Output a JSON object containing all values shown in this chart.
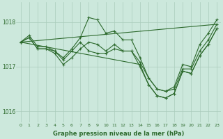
{
  "line1_x": [
    0,
    1,
    2,
    3,
    4,
    5,
    6,
    7,
    8,
    9,
    10,
    11,
    12,
    13,
    14,
    15,
    16,
    17,
    18,
    19,
    20,
    21,
    22,
    23
  ],
  "line1_y": [
    1017.55,
    1017.65,
    1017.4,
    1017.4,
    1017.35,
    1017.15,
    1017.35,
    1017.55,
    1017.35,
    1017.3,
    1017.3,
    1017.4,
    1017.35,
    1017.35,
    1017.1,
    1016.75,
    1016.5,
    1016.45,
    1016.5,
    1016.95,
    1016.95,
    1017.35,
    1017.6,
    1017.95
  ],
  "line2_x": [
    0,
    1,
    2,
    3,
    4,
    5,
    6,
    7,
    8,
    9,
    10,
    11,
    12,
    13,
    14,
    15,
    16,
    17,
    18,
    19,
    20,
    21,
    22,
    23
  ],
  "line2_y": [
    1017.55,
    1017.65,
    1017.4,
    1017.4,
    1017.3,
    1017.05,
    1017.2,
    1017.4,
    1017.55,
    1017.5,
    1017.35,
    1017.5,
    1017.35,
    1017.35,
    1017.0,
    1016.6,
    1016.35,
    1016.3,
    1016.4,
    1016.9,
    1016.85,
    1017.25,
    1017.5,
    1017.85
  ],
  "line3_x": [
    0,
    1,
    2,
    3,
    4,
    5,
    6,
    7,
    8,
    9,
    10,
    11,
    12,
    13,
    14,
    15,
    16,
    17,
    18,
    19,
    20,
    21,
    22,
    23
  ],
  "line3_y": [
    1017.55,
    1017.7,
    1017.45,
    1017.45,
    1017.35,
    1017.2,
    1017.4,
    1017.65,
    1018.1,
    1018.05,
    1017.75,
    1017.8,
    1017.6,
    1017.6,
    1017.2,
    1016.75,
    1016.5,
    1016.45,
    1016.55,
    1017.05,
    1017.0,
    1017.5,
    1017.75,
    1018.05
  ],
  "line4_x": [
    0,
    23
  ],
  "line4_y": [
    1017.55,
    1017.95
  ],
  "line5_x": [
    0,
    14,
    15,
    16,
    17,
    18,
    19,
    20,
    21,
    22,
    23
  ],
  "line5_y": [
    1017.55,
    1017.05,
    1016.6,
    1016.35,
    1016.3,
    1016.4,
    1016.9,
    1016.85,
    1017.25,
    1017.5,
    1017.85
  ],
  "line_color": "#2d6a2d",
  "bg_color": "#cce8dc",
  "grid_color": "#aaccbb",
  "xlabel": "Graphe pression niveau de la mer (hPa)",
  "ylim": [
    1015.75,
    1018.45
  ],
  "yticks": [
    1016,
    1017,
    1018
  ],
  "xlim": [
    -0.5,
    23.5
  ],
  "xticks": [
    0,
    1,
    2,
    3,
    4,
    5,
    6,
    7,
    8,
    9,
    10,
    11,
    12,
    13,
    14,
    15,
    16,
    17,
    18,
    19,
    20,
    21,
    22,
    23
  ]
}
